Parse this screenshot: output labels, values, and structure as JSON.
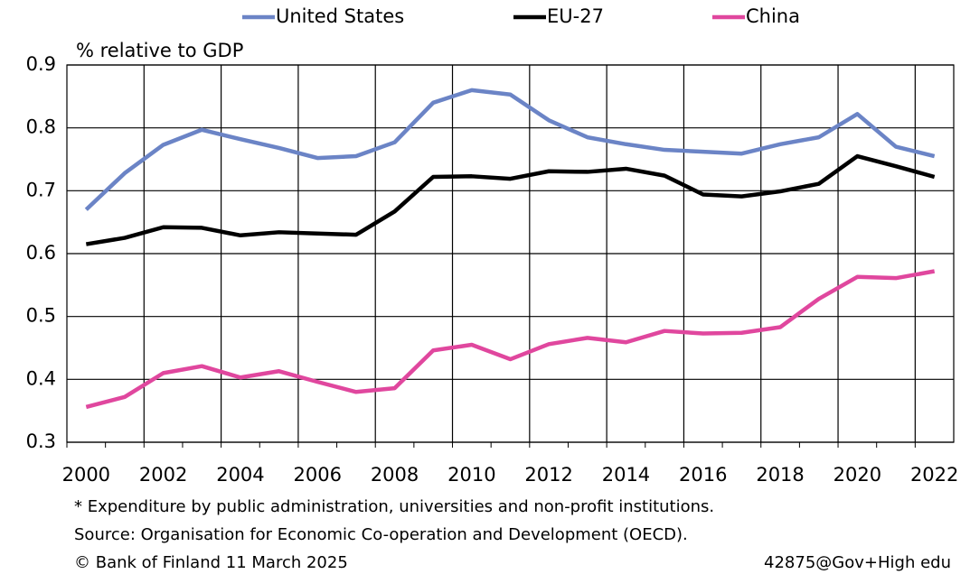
{
  "chart_data": {
    "type": "line",
    "ylabel": "% relative to GDP",
    "categories": [
      "2000",
      null,
      "2002",
      null,
      "2004",
      null,
      "2006",
      null,
      "2008",
      null,
      "2010",
      null,
      "2012",
      null,
      "2014",
      null,
      "2016",
      null,
      "2018",
      null,
      "2020",
      null,
      "2022"
    ],
    "series": [
      {
        "name": "United States",
        "color": "#6b84c6",
        "values": [
          0.67,
          0.728,
          0.773,
          0.797,
          0.782,
          0.768,
          0.752,
          0.755,
          0.777,
          0.84,
          0.86,
          0.853,
          0.812,
          0.785,
          0.774,
          0.765,
          0.762,
          0.759,
          0.774,
          0.785,
          0.822,
          0.77,
          0.755
        ]
      },
      {
        "name": "EU-27",
        "color": "#000000",
        "values": [
          0.615,
          0.625,
          0.642,
          0.641,
          0.629,
          0.634,
          0.632,
          0.63,
          0.667,
          0.722,
          0.723,
          0.719,
          0.731,
          0.73,
          0.735,
          0.724,
          0.694,
          0.691,
          0.699,
          0.711,
          0.755,
          0.739,
          0.722
        ]
      },
      {
        "name": "China",
        "color": "#e0479e",
        "values": [
          0.356,
          0.372,
          0.41,
          0.421,
          0.403,
          0.413,
          0.396,
          0.38,
          0.386,
          0.446,
          0.455,
          0.432,
          0.456,
          0.466,
          0.459,
          0.477,
          0.473,
          0.474,
          0.483,
          0.528,
          0.563,
          0.561,
          0.572
        ]
      }
    ],
    "ylim": [
      0.3,
      0.9
    ],
    "yticks": [
      0.3,
      0.4,
      0.5,
      0.6,
      0.7,
      0.8,
      0.9
    ],
    "grid": true,
    "legend": "top",
    "notes": [
      "* Expenditure by public administration, universities and non-profit institutions.",
      "Source: Organisation for Economic Co-operation and Development (OECD).",
      "© Bank of Finland 11 March 2025"
    ],
    "code": "42875@Gov+High edu"
  }
}
